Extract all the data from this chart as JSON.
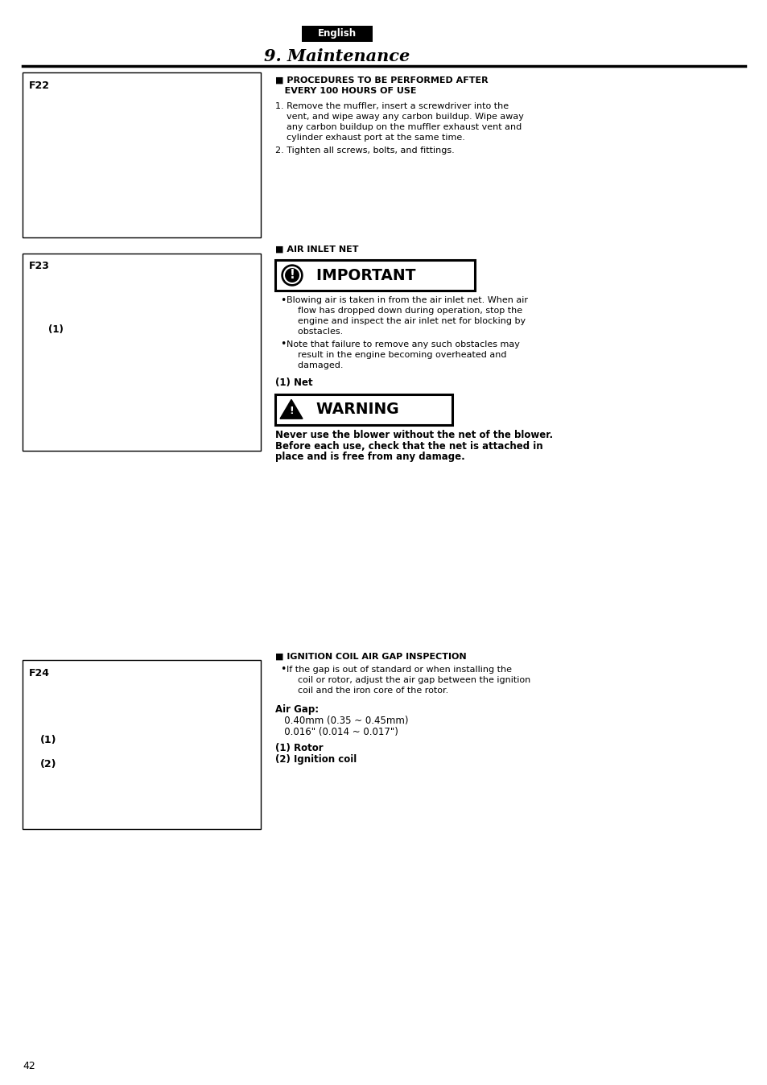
{
  "page_bg": "#ffffff",
  "page_number": "42",
  "english_label": "English",
  "english_bg": "#000000",
  "english_fg": "#ffffff",
  "section_title": "9. Maintenance",
  "divider_color": "#000000",
  "body_text_color": "#000000",
  "figure_border_color": "#000000",
  "figure_bg": "#ffffff",
  "fig_labels": [
    "F22",
    "F23",
    "F24"
  ],
  "proc_heading1": "■ PROCEDURES TO BE PERFORMED AFTER",
  "proc_heading2": "   EVERY 100 HOURS OF USE",
  "proc1_lines": [
    "1. Remove the muffler, insert a screwdriver into the",
    "    vent, and wipe away any carbon buildup. Wipe away",
    "    any carbon buildup on the muffler exhaust vent and",
    "    cylinder exhaust port at the same time."
  ],
  "proc2": "2. Tighten all screws, bolts, and fittings.",
  "air_inlet_heading": "■ AIR INLET NET",
  "important_label": "  IMPORTANT",
  "important_b1_lines": [
    "Blowing air is taken in from the air inlet net. When air",
    "    flow has dropped down during operation, stop the",
    "    engine and inspect the air inlet net for blocking by",
    "    obstacles."
  ],
  "important_b2_lines": [
    "Note that failure to remove any such obstacles may",
    "    result in the engine becoming overheated and",
    "    damaged."
  ],
  "net_label": "(1) Net",
  "warning_label": "  WARNING",
  "warning_lines": [
    "Never use the blower without the net of the blower.",
    "Before each use, check that the net is attached in",
    "place and is free from any damage."
  ],
  "ignition_heading": "■ IGNITION COIL AIR GAP INSPECTION",
  "ignition_b1_lines": [
    "If the gap is out of standard or when installing the",
    "    coil or rotor, adjust the air gap between the ignition",
    "    coil and the iron core of the rotor."
  ],
  "air_gap_label": "Air Gap:",
  "air_gap_line1": "   0.40mm (0.35 ~ 0.45mm)",
  "air_gap_line2": "   0.016\" (0.014 ~ 0.017\")",
  "rotor_label": "(1) Rotor",
  "coil_label": "(2) Ignition coil"
}
